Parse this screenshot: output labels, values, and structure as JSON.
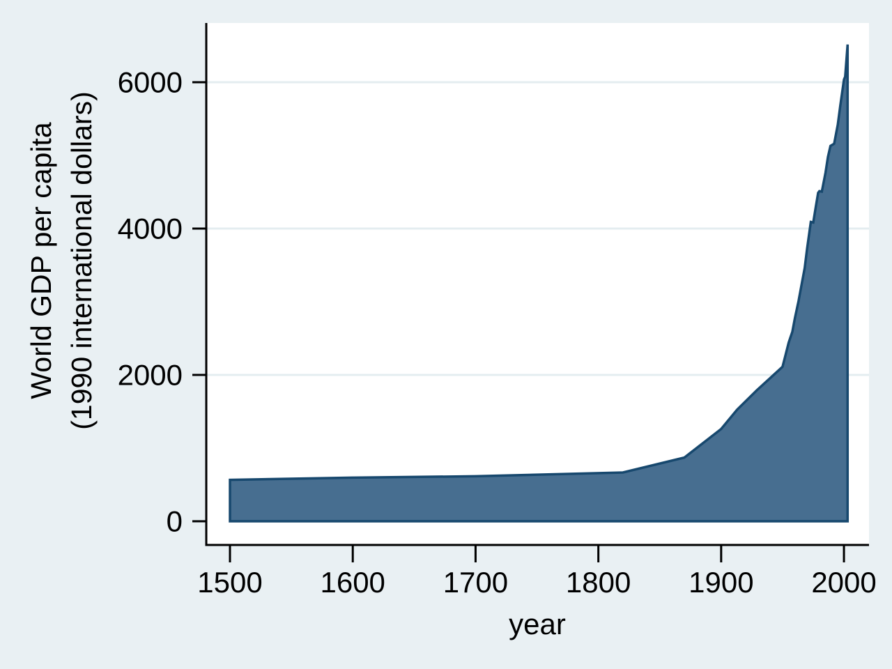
{
  "figure": {
    "background": "#e9f0f3",
    "plot_background": "#ffffff",
    "grid_color": "#e4edf0",
    "axis_color": "#000000",
    "area_fill": "#476e90",
    "area_stroke": "#17486e"
  },
  "chart_data": {
    "type": "area",
    "title": "",
    "xlabel": "year",
    "ylabel": "World GDP per capita (1990 international dollars)",
    "ylabel_lines": [
      "World GDP per capita",
      "(1990 international dollars)"
    ],
    "x_ticks": [
      1500,
      1600,
      1700,
      1800,
      1900,
      2000
    ],
    "y_ticks": [
      0,
      2000,
      4000,
      6000
    ],
    "xlim": [
      1480.7,
      2020.4
    ],
    "ylim": [
      -324,
      6810
    ],
    "grid": "horizontal",
    "grid_values": [
      2000,
      4000,
      6000
    ],
    "legend_position": "none",
    "series": [
      {
        "name": "World GDP per capita (1990 international dollars)",
        "baseline": 0,
        "points": [
          [
            1500,
            566
          ],
          [
            1600,
            596
          ],
          [
            1700,
            615
          ],
          [
            1820,
            667
          ],
          [
            1870,
            870
          ],
          [
            1900,
            1261
          ],
          [
            1913,
            1526
          ],
          [
            1929,
            1790
          ],
          [
            1940,
            1958
          ],
          [
            1950,
            2111
          ],
          [
            1952,
            2245
          ],
          [
            1955,
            2444
          ],
          [
            1958,
            2590
          ],
          [
            1960,
            2773
          ],
          [
            1963,
            3010
          ],
          [
            1965,
            3190
          ],
          [
            1968,
            3460
          ],
          [
            1970,
            3729
          ],
          [
            1973,
            4091
          ],
          [
            1975,
            4083
          ],
          [
            1977,
            4290
          ],
          [
            1979,
            4489
          ],
          [
            1980,
            4512
          ],
          [
            1982,
            4505
          ],
          [
            1985,
            4764
          ],
          [
            1987,
            4980
          ],
          [
            1989,
            5130
          ],
          [
            1992,
            5160
          ],
          [
            1995,
            5421
          ],
          [
            1997,
            5680
          ],
          [
            2000,
            6038
          ],
          [
            2001,
            6077
          ],
          [
            2003,
            6516
          ]
        ]
      }
    ]
  }
}
